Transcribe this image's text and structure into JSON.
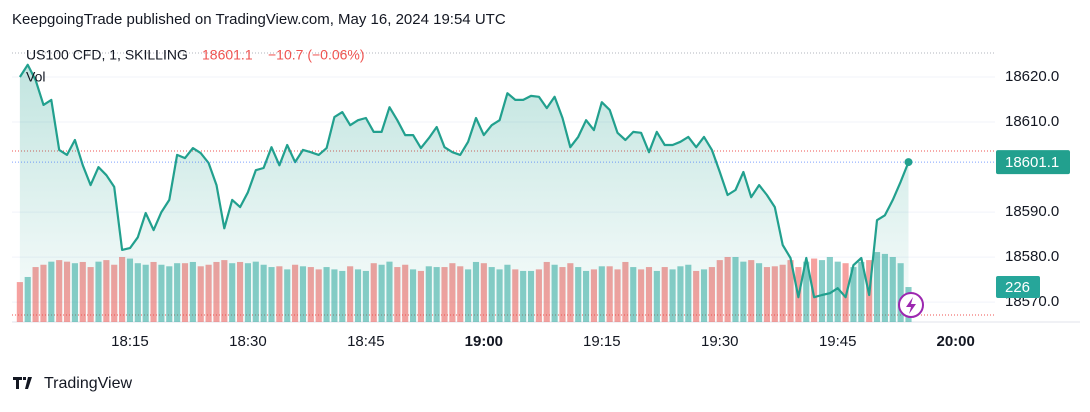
{
  "chart_data": {
    "type": "line",
    "title": "KeepgoingTrade published on TradingView.com, May 16, 2024 19:54 UTC",
    "brand": "TradingView",
    "change": "−10.7 (−0.06%)",
    "x": [
      "18:01",
      "18:02",
      "18:03",
      "18:04",
      "18:05",
      "18:06",
      "18:07",
      "18:08",
      "18:09",
      "18:10",
      "18:11",
      "18:12",
      "18:13",
      "18:14",
      "18:15",
      "18:16",
      "18:17",
      "18:18",
      "18:19",
      "18:20",
      "18:21",
      "18:22",
      "18:23",
      "18:24",
      "18:25",
      "18:26",
      "18:27",
      "18:28",
      "18:29",
      "18:30",
      "18:31",
      "18:32",
      "18:33",
      "18:34",
      "18:35",
      "18:36",
      "18:37",
      "18:38",
      "18:39",
      "18:40",
      "18:41",
      "18:42",
      "18:43",
      "18:44",
      "18:45",
      "18:46",
      "18:47",
      "18:48",
      "18:49",
      "18:50",
      "18:51",
      "18:52",
      "18:53",
      "18:54",
      "18:55",
      "18:56",
      "18:57",
      "18:58",
      "18:59",
      "19:00",
      "19:01",
      "19:02",
      "19:03",
      "19:04",
      "19:05",
      "19:06",
      "19:07",
      "19:08",
      "19:09",
      "19:10",
      "19:11",
      "19:12",
      "19:13",
      "19:14",
      "19:15",
      "19:16",
      "19:17",
      "19:18",
      "19:19",
      "19:20",
      "19:21",
      "19:22",
      "19:23",
      "19:24",
      "19:25",
      "19:26",
      "19:27",
      "19:28",
      "19:29",
      "19:30",
      "19:31",
      "19:32",
      "19:33",
      "19:34",
      "19:35",
      "19:36",
      "19:37",
      "19:38",
      "19:39",
      "19:40",
      "19:41",
      "19:42",
      "19:43",
      "19:44",
      "19:45",
      "19:46",
      "19:47",
      "19:48",
      "19:49",
      "19:50",
      "19:51",
      "19:52",
      "19:53",
      "19:54"
    ],
    "series": [
      {
        "name": "US100 CFD, 1, SKILLING",
        "color": "#22a08e",
        "values": [
          18620.0,
          18622.7,
          18619.3,
          18613.8,
          18614.9,
          18603.8,
          18602.7,
          18606.0,
          18600.4,
          18596.0,
          18600.0,
          18598.2,
          18595.6,
          18581.6,
          18582.0,
          18584.4,
          18589.8,
          18586.0,
          18590.0,
          18592.7,
          18602.7,
          18602.0,
          18604.2,
          18603.1,
          18600.9,
          18596.0,
          18586.4,
          18592.7,
          18591.1,
          18594.4,
          18599.3,
          18599.8,
          18604.4,
          18600.4,
          18604.9,
          18601.1,
          18603.8,
          18603.3,
          18602.7,
          18604.2,
          18611.1,
          18612.2,
          18609.3,
          18610.4,
          18610.9,
          18607.8,
          18607.8,
          18613.3,
          18610.4,
          18607.1,
          18607.1,
          18604.2,
          18606.4,
          18608.9,
          18604.4,
          18603.3,
          18602.7,
          18605.6,
          18610.9,
          18607.1,
          18609.3,
          18610.4,
          18616.4,
          18614.9,
          18614.9,
          18615.8,
          18615.6,
          18613.1,
          18615.6,
          18610.9,
          18604.4,
          18606.7,
          18610.4,
          18608.2,
          18614.4,
          18612.7,
          18607.6,
          18606.0,
          18607.8,
          18607.6,
          18603.3,
          18607.8,
          18604.9,
          18604.9,
          18605.6,
          18606.7,
          18604.4,
          18606.7,
          18603.8,
          18598.9,
          18593.8,
          18594.9,
          18598.9,
          18593.3,
          18596.0,
          18593.8,
          18591.1,
          18582.7,
          18579.8,
          18571.1,
          18579.8,
          18571.1,
          18571.6,
          18572.0,
          18573.1,
          18571.1,
          18578.2,
          18579.8,
          18571.6,
          18588.2,
          18589.3,
          18592.7,
          18596.7,
          18601.1
        ]
      },
      {
        "name": "Vol",
        "axis": "y2",
        "up_color": "#26a69a",
        "down_color": "#ef5350",
        "values": [
          258,
          291,
          355,
          370,
          390,
          400,
          390,
          380,
          388,
          355,
          390,
          400,
          370,
          420,
          410,
          380,
          370,
          388,
          370,
          360,
          380,
          380,
          388,
          360,
          370,
          388,
          400,
          380,
          388,
          380,
          390,
          370,
          355,
          360,
          340,
          370,
          360,
          355,
          340,
          355,
          340,
          330,
          360,
          340,
          330,
          380,
          370,
          390,
          355,
          370,
          340,
          330,
          360,
          355,
          355,
          380,
          360,
          340,
          388,
          380,
          355,
          340,
          370,
          340,
          330,
          330,
          340,
          388,
          370,
          355,
          380,
          355,
          330,
          340,
          360,
          360,
          340,
          388,
          355,
          340,
          355,
          330,
          355,
          340,
          360,
          370,
          330,
          340,
          355,
          400,
          420,
          420,
          390,
          400,
          380,
          355,
          360,
          370,
          400,
          355,
          390,
          410,
          400,
          420,
          390,
          380,
          355,
          388,
          400,
          452,
          440,
          420,
          380,
          226
        ]
      }
    ],
    "xlim": [
      "18:00",
      "20:05"
    ],
    "xticks": [
      "18:15",
      "18:30",
      "18:45",
      "19:00",
      "19:15",
      "19:30",
      "19:45",
      "20:00"
    ],
    "ylim": [
      18565.6,
      18627.1
    ],
    "yticks": [
      {
        "value": 18570,
        "label": "18570.0"
      },
      {
        "value": 18580,
        "label": "18580.0"
      },
      {
        "value": 18590,
        "label": "18590.0"
      },
      {
        "value": 18610,
        "label": "18610.0"
      },
      {
        "value": 18620,
        "label": "18620.0"
      }
    ],
    "y2lim": [
      0,
      1790
    ]
  }
}
